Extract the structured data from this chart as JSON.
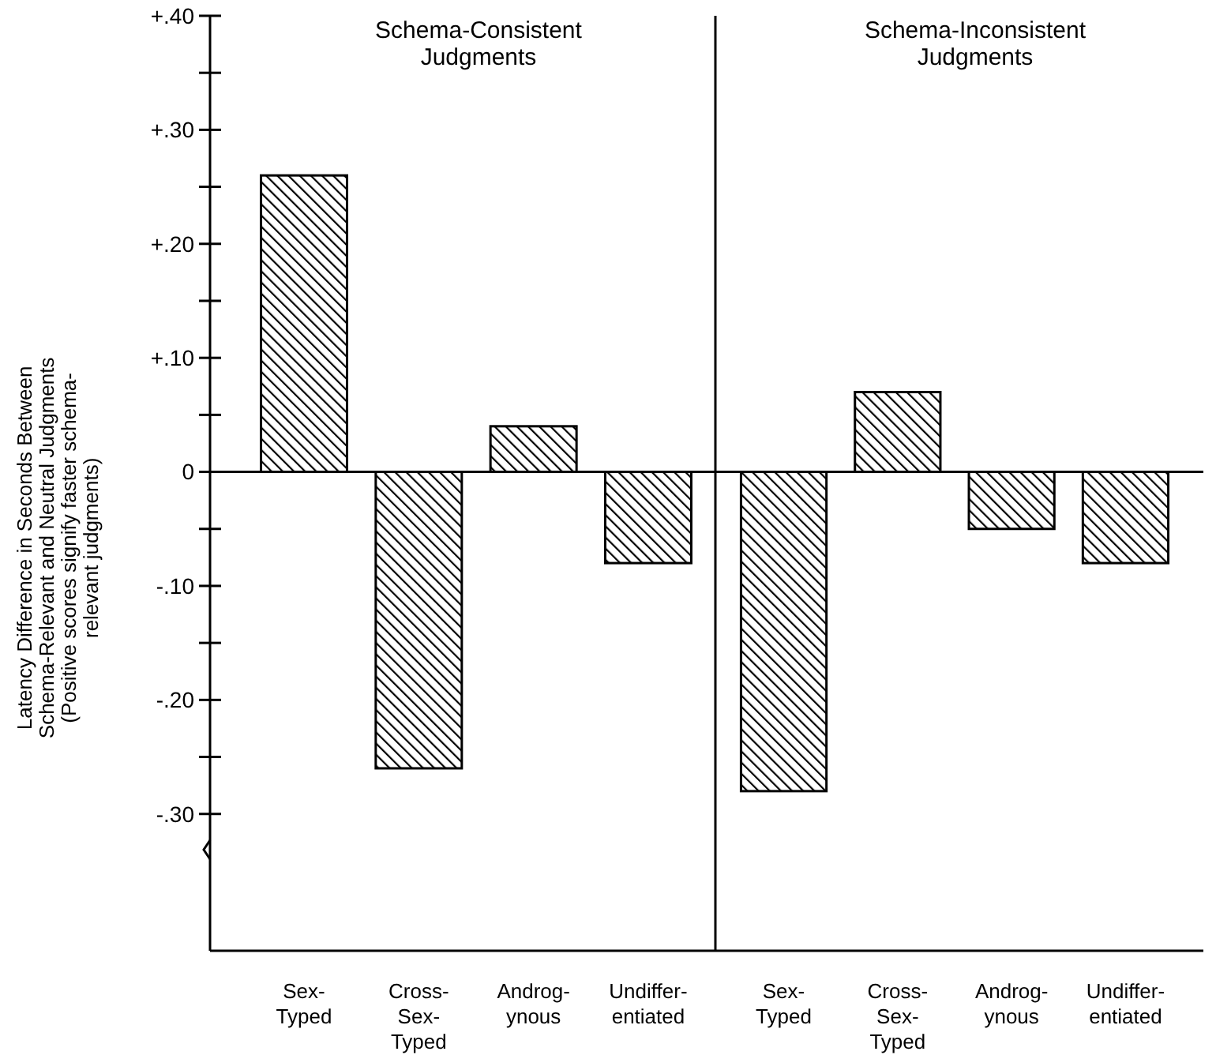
{
  "chart_data": [
    {
      "type": "bar",
      "title": "Schema-Consistent\nJudgments",
      "ylabel": "Latency Difference in Seconds Between\nSchema-Relevant and Neutral Judgments\n(Positive scores signify faster schema-\nrelevant judgments)",
      "categories": [
        "Sex-\nTyped",
        "Cross-\nSex-\nTyped",
        "Androg-\nynous",
        "Undiffer-\nentiated"
      ],
      "values": [
        0.26,
        -0.26,
        0.04,
        -0.08
      ],
      "color": "#000000",
      "ylim": [
        -0.42,
        0.4
      ],
      "yticks": [
        {
          "value": 0.4,
          "label": "+.40"
        },
        {
          "value": 0.35,
          "label": null
        },
        {
          "value": 0.3,
          "label": "+.30"
        },
        {
          "value": 0.25,
          "label": null
        },
        {
          "value": 0.2,
          "label": "+.20"
        },
        {
          "value": 0.15,
          "label": null
        },
        {
          "value": 0.1,
          "label": "+.10"
        },
        {
          "value": 0.05,
          "label": null
        },
        0,
        {
          "value": -0.05,
          "label": null
        },
        {
          "value": -0.1,
          "label": "-.10"
        },
        {
          "value": -0.15,
          "label": null
        },
        {
          "value": -0.2,
          "label": "-.20"
        },
        {
          "value": -0.25,
          "label": null
        },
        {
          "value": -0.3,
          "label": "-.30"
        }
      ],
      "ref_lines": [
        {
          "axis": "y",
          "value": 0
        }
      ]
    },
    {
      "type": "bar",
      "title": "Schema-Inconsistent\nJudgments",
      "categories": [
        "Sex-\nTyped",
        "Cross-\nSex-\nTyped",
        "Androg-\nynous",
        "Undiffer-\nentiated"
      ],
      "values": [
        -0.28,
        0.07,
        -0.05,
        -0.08
      ],
      "color": "#000000",
      "ylim": [
        -0.42,
        0.4
      ],
      "tick_labels": "x",
      "ref_lines": [
        {
          "axis": "y",
          "value": 0
        }
      ]
    }
  ]
}
